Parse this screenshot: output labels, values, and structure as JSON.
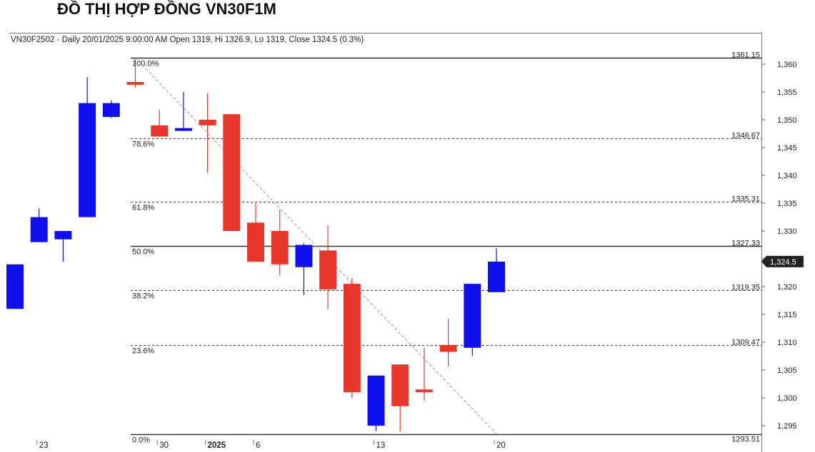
{
  "page": {
    "title": "ĐỒ THỊ HỢP ĐỒNG VN30F1M"
  },
  "info_line": "VN30F2502 - Daily 20/01/2025 9:00:00 AM Open 1319, Hi 1326.9, Lo 1319, Close 1324.5 (0.3%)",
  "colors": {
    "up": "#1010ee",
    "down": "#e8362a",
    "trend": "#e87a7a",
    "grid": "#333333",
    "last_bg": "#222222"
  },
  "chart_data": {
    "type": "candlestick",
    "ylim": [
      1293,
      1362
    ],
    "y_ticks": [
      1295,
      1300,
      1305,
      1310,
      1315,
      1320,
      1325,
      1330,
      1335,
      1340,
      1345,
      1350,
      1355,
      1360
    ],
    "y_tick_labels": [
      "1,295",
      "1,300",
      "1,305",
      "1,310",
      "1,315",
      "1,320",
      "1,325",
      "1,330",
      "1,335",
      "1,340",
      "1,345",
      "1,350",
      "1,355",
      "1,360"
    ],
    "x_labels": [
      {
        "index": 1,
        "text": "23",
        "bold": false
      },
      {
        "index": 6,
        "text": "30",
        "bold": false
      },
      {
        "index": 8,
        "text": "2025",
        "bold": true
      },
      {
        "index": 10,
        "text": "6",
        "bold": false
      },
      {
        "index": 15,
        "text": "13",
        "bold": false
      },
      {
        "index": 20,
        "text": "20",
        "bold": false
      }
    ],
    "candles": [
      {
        "index": 0,
        "open": 1316,
        "high": 1324,
        "low": 1316,
        "close": 1324
      },
      {
        "index": 1,
        "open": 1328,
        "high": 1334,
        "low": 1328,
        "close": 1332.5
      },
      {
        "index": 2,
        "open": 1328.5,
        "high": 1330,
        "low": 1324.5,
        "close": 1330
      },
      {
        "index": 3,
        "open": 1332.5,
        "high": 1357.7,
        "low": 1332.5,
        "close": 1353
      },
      {
        "index": 4,
        "open": 1350.5,
        "high": 1353.5,
        "low": 1350.3,
        "close": 1353
      },
      {
        "index": 5,
        "open": 1356.8,
        "high": 1361,
        "low": 1355.8,
        "close": 1356.3
      },
      {
        "index": 6,
        "open": 1349,
        "high": 1351.8,
        "low": 1347,
        "close": 1347
      },
      {
        "index": 7,
        "open": 1348,
        "high": 1355,
        "low": 1348,
        "close": 1348.5
      },
      {
        "index": 8,
        "open": 1350,
        "high": 1354.8,
        "low": 1340.5,
        "close": 1349
      },
      {
        "index": 9,
        "open": 1351,
        "high": 1351,
        "low": 1330,
        "close": 1330
      },
      {
        "index": 10,
        "open": 1331.5,
        "high": 1335,
        "low": 1324.5,
        "close": 1324.5
      },
      {
        "index": 11,
        "open": 1330,
        "high": 1333.8,
        "low": 1322,
        "close": 1324
      },
      {
        "index": 12,
        "open": 1323.5,
        "high": 1327.8,
        "low": 1318.5,
        "close": 1327.5
      },
      {
        "index": 13,
        "open": 1326.5,
        "high": 1331,
        "low": 1316,
        "close": 1319.5
      },
      {
        "index": 14,
        "open": 1320.5,
        "high": 1321.5,
        "low": 1300,
        "close": 1301
      },
      {
        "index": 15,
        "open": 1295,
        "high": 1304,
        "low": 1294,
        "close": 1304
      },
      {
        "index": 16,
        "open": 1306,
        "high": 1306,
        "low": 1294,
        "close": 1298.5
      },
      {
        "index": 17,
        "open": 1301.5,
        "high": 1309,
        "low": 1299.5,
        "close": 1301
      },
      {
        "index": 18,
        "open": 1309.5,
        "high": 1314.2,
        "low": 1305.7,
        "close": 1308.3
      },
      {
        "index": 19,
        "open": 1309,
        "high": 1320.5,
        "low": 1307.5,
        "close": 1320.5
      },
      {
        "index": 20,
        "open": 1319,
        "high": 1326.9,
        "low": 1319,
        "close": 1324.5
      }
    ],
    "fibonacci": [
      {
        "pct": "100.0%",
        "value": "1361.15",
        "price": 1361.15,
        "style": "solid"
      },
      {
        "pct": "78.6%",
        "value": "1346.67",
        "price": 1346.67,
        "style": "dashed"
      },
      {
        "pct": "61.8%",
        "value": "1335.31",
        "price": 1335.31,
        "style": "dashed"
      },
      {
        "pct": "50.0%",
        "value": "1327.33",
        "price": 1327.33,
        "style": "solid"
      },
      {
        "pct": "38.2%",
        "value": "1319.35",
        "price": 1319.35,
        "style": "dashed"
      },
      {
        "pct": "23.6%",
        "value": "1309.47",
        "price": 1309.47,
        "style": "dashed"
      },
      {
        "pct": "0.0%",
        "value": "1293.51",
        "price": 1293.51,
        "style": "solid"
      }
    ],
    "trendline": {
      "from_index": 5,
      "from_price": 1361.15,
      "to_index": 20,
      "to_price": 1293.51
    },
    "last_price_label": "1,324.5",
    "last_price": 1324.5
  }
}
